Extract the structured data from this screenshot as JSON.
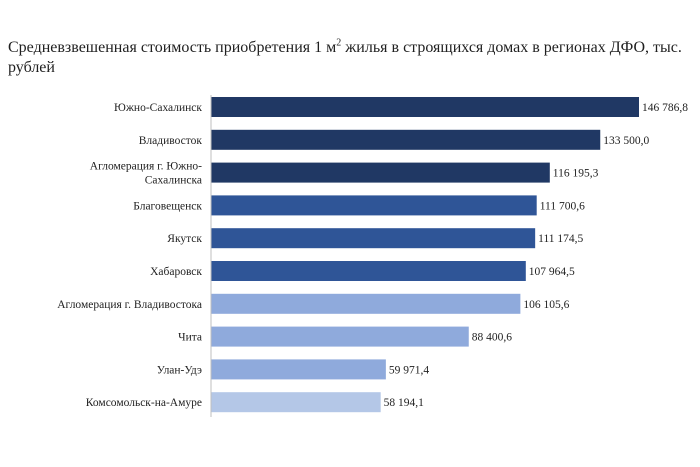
{
  "title": {
    "part1": "Средневзвешенная стоимость приобретения 1 м",
    "sup": "2",
    "part2": " жилья в строящихся домах в регионах ДФО, тыс. рублей"
  },
  "colors": {
    "dark": "#203864",
    "mid": "#2f5597",
    "light": "#8faadc",
    "lightest": "#b4c7e7",
    "axis": "#bfbfbf"
  },
  "chart_data": {
    "type": "bar",
    "orientation": "horizontal",
    "title": "Средневзвешенная стоимость приобретения 1 м² жилья в строящихся домах в регионах ДФО, тыс. рублей",
    "xlabel": "",
    "ylabel": "",
    "xlim": [
      0,
      150000
    ],
    "grid": false,
    "categories": [
      [
        "Южно-Сахалинск"
      ],
      [
        "Владивосток"
      ],
      [
        "Агломерация г. Южно-",
        "Сахалинска"
      ],
      [
        "Благовещенск"
      ],
      [
        "Якутск"
      ],
      [
        "Хабаровск"
      ],
      [
        "Агломерация г. Владивостока"
      ],
      [
        "Чита"
      ],
      [
        "Улан-Удэ"
      ],
      [
        "Комсомольск-на-Амуре"
      ]
    ],
    "values": [
      146786.8,
      133500.0,
      116195.3,
      111700.6,
      111174.5,
      107964.5,
      106105.6,
      88400.6,
      59971.4,
      58194.1
    ],
    "value_labels": [
      "146 786,8",
      "133 500,0",
      "116 195,3",
      "111 700,6",
      "111 174,5",
      "107 964,5",
      "106 105,6",
      "88 400,6",
      "59 971,4",
      "58 194,1"
    ],
    "bar_shades": [
      "dark",
      "dark",
      "dark",
      "mid",
      "mid",
      "mid",
      "light",
      "light",
      "light",
      "lightest"
    ]
  }
}
